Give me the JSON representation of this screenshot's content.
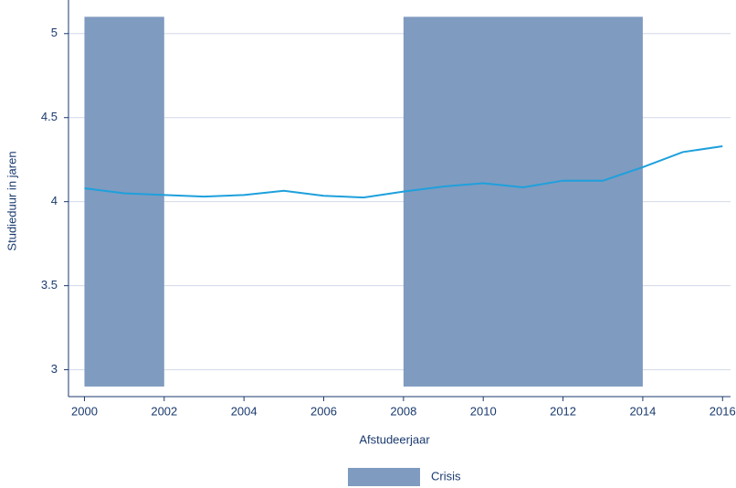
{
  "chart_data": {
    "type": "line",
    "x_label": "Afstudeerjaar",
    "y_label": "Studieduur in jaren",
    "x": [
      2000,
      2001,
      2002,
      2003,
      2004,
      2005,
      2006,
      2007,
      2008,
      2009,
      2010,
      2011,
      2012,
      2013,
      2014,
      2015,
      2016
    ],
    "series": [
      {
        "name": null,
        "color": "#1ea0dc",
        "values": [
          4.08,
          4.05,
          4.04,
          4.03,
          4.04,
          4.065,
          4.035,
          4.025,
          4.06,
          4.09,
          4.11,
          4.085,
          4.125,
          4.125,
          4.205,
          4.295,
          4.33
        ]
      }
    ],
    "shaded": {
      "name": "Crisis",
      "color": "#7f9bc0",
      "ranges": [
        [
          2000,
          2002
        ],
        [
          2008,
          2014
        ]
      ],
      "y": [
        2.9,
        5.1
      ]
    },
    "xlim": [
      1999.6,
      2016.2
    ],
    "ylim": [
      2.84,
      5.2
    ],
    "xticks": [
      2000,
      2002,
      2004,
      2006,
      2008,
      2010,
      2012,
      2014,
      2016
    ],
    "yticks": [
      3,
      3.5,
      4,
      4.5,
      5
    ],
    "grid": true,
    "legend": "bottom"
  }
}
